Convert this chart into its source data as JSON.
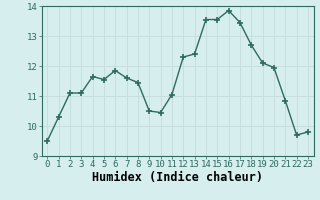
{
  "x": [
    0,
    1,
    2,
    3,
    4,
    5,
    6,
    7,
    8,
    9,
    10,
    11,
    12,
    13,
    14,
    15,
    16,
    17,
    18,
    19,
    20,
    21,
    22,
    23
  ],
  "y": [
    9.5,
    10.3,
    11.1,
    11.1,
    11.65,
    11.55,
    11.85,
    11.6,
    11.45,
    10.5,
    10.45,
    11.05,
    12.3,
    12.4,
    13.55,
    13.55,
    13.85,
    13.45,
    12.7,
    12.1,
    11.95,
    10.85,
    9.7,
    9.8
  ],
  "title": "",
  "xlabel": "Humidex (Indice chaleur)",
  "ylabel": "",
  "ylim": [
    9,
    14
  ],
  "xlim": [
    -0.5,
    23.5
  ],
  "yticks": [
    9,
    10,
    11,
    12,
    13,
    14
  ],
  "line_color": "#2e6b5e",
  "marker_color": "#2e6b5e",
  "bg_color": "#d6eeee",
  "grid_color": "#c8dede",
  "tick_label_fontsize": 6.5,
  "xlabel_fontsize": 8.5
}
